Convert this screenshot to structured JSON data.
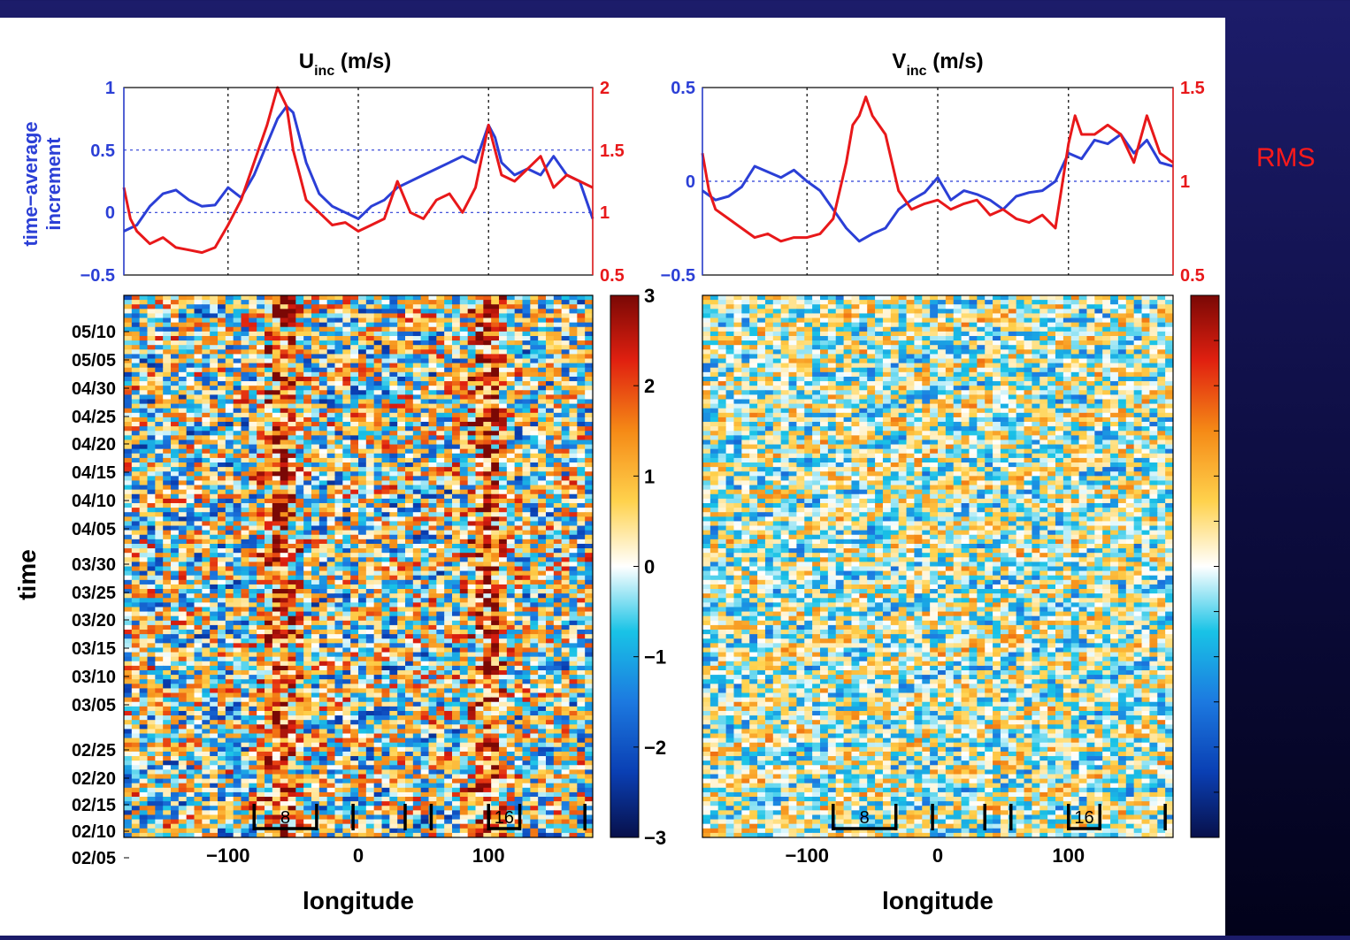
{
  "side_label": "RMS",
  "chart_data": [
    {
      "type": "line",
      "panel": "top-left",
      "title": "U",
      "title_subscript": "inc",
      "title_units": " (m/s)",
      "ylabel_lines": [
        "time−average",
        "increment"
      ],
      "xlim": [
        -180,
        180
      ],
      "ylim_left": [
        -0.5,
        1
      ],
      "ylim_right": [
        0.5,
        2
      ],
      "yticks_left": [
        "1",
        "0.5",
        "0",
        "−0.5"
      ],
      "yticks_right": [
        "2",
        "1.5",
        "1",
        "0.5"
      ],
      "grid": "dotted",
      "series": [
        {
          "axis": "left",
          "color": "#2b3fd6",
          "x": [
            -180,
            -170,
            -160,
            -150,
            -140,
            -130,
            -120,
            -110,
            -100,
            -90,
            -80,
            -70,
            -62,
            -55,
            -50,
            -45,
            -40,
            -30,
            -20,
            -10,
            0,
            10,
            20,
            30,
            40,
            50,
            60,
            70,
            80,
            90,
            100,
            105,
            110,
            120,
            130,
            140,
            150,
            160,
            170,
            180
          ],
          "y": [
            -0.15,
            -0.1,
            0.05,
            0.15,
            0.18,
            0.1,
            0.05,
            0.06,
            0.2,
            0.12,
            0.3,
            0.55,
            0.75,
            0.85,
            0.8,
            0.6,
            0.4,
            0.15,
            0.05,
            0.0,
            -0.05,
            0.05,
            0.1,
            0.2,
            0.25,
            0.3,
            0.35,
            0.4,
            0.45,
            0.4,
            0.7,
            0.6,
            0.4,
            0.3,
            0.35,
            0.3,
            0.45,
            0.3,
            0.25,
            -0.05
          ]
        },
        {
          "axis": "right",
          "color": "#e8181a",
          "x": [
            -180,
            -175,
            -170,
            -160,
            -150,
            -140,
            -130,
            -120,
            -110,
            -100,
            -90,
            -80,
            -70,
            -62,
            -55,
            -50,
            -45,
            -40,
            -30,
            -20,
            -10,
            0,
            10,
            20,
            30,
            40,
            50,
            60,
            70,
            80,
            90,
            100,
            105,
            110,
            120,
            130,
            140,
            150,
            160,
            170,
            180
          ],
          "y": [
            1.2,
            0.95,
            0.85,
            0.75,
            0.8,
            0.72,
            0.7,
            0.68,
            0.72,
            0.9,
            1.1,
            1.4,
            1.7,
            2.0,
            1.85,
            1.5,
            1.3,
            1.1,
            1.0,
            0.9,
            0.92,
            0.85,
            0.9,
            0.95,
            1.25,
            1.0,
            0.95,
            1.1,
            1.15,
            1.0,
            1.2,
            1.7,
            1.5,
            1.3,
            1.25,
            1.35,
            1.45,
            1.2,
            1.3,
            1.25,
            1.2
          ]
        }
      ]
    },
    {
      "type": "line",
      "panel": "top-right",
      "title": "V",
      "title_subscript": "inc",
      "title_units": " (m/s)",
      "xlim": [
        -180,
        180
      ],
      "ylim_left": [
        -0.5,
        0.5
      ],
      "ylim_right": [
        0.5,
        1.5
      ],
      "yticks_left": [
        "0.5",
        "0",
        "−0.5"
      ],
      "yticks_right": [
        "1.5",
        "1",
        "0.5"
      ],
      "grid": "dotted",
      "series": [
        {
          "axis": "left",
          "color": "#2b3fd6",
          "x": [
            -180,
            -170,
            -160,
            -150,
            -140,
            -130,
            -120,
            -110,
            -100,
            -90,
            -80,
            -70,
            -60,
            -50,
            -40,
            -30,
            -20,
            -10,
            0,
            10,
            20,
            30,
            40,
            50,
            60,
            70,
            80,
            90,
            100,
            110,
            120,
            130,
            140,
            150,
            160,
            170,
            180
          ],
          "y": [
            -0.05,
            -0.1,
            -0.08,
            -0.03,
            0.08,
            0.05,
            0.02,
            0.06,
            0.0,
            -0.05,
            -0.15,
            -0.25,
            -0.32,
            -0.28,
            -0.25,
            -0.15,
            -0.1,
            -0.06,
            0.02,
            -0.1,
            -0.05,
            -0.07,
            -0.1,
            -0.15,
            -0.08,
            -0.06,
            -0.05,
            0.0,
            0.15,
            0.12,
            0.22,
            0.2,
            0.25,
            0.15,
            0.22,
            0.1,
            0.08
          ]
        },
        {
          "axis": "right",
          "color": "#e8181a",
          "x": [
            -180,
            -175,
            -170,
            -160,
            -150,
            -140,
            -130,
            -120,
            -110,
            -100,
            -90,
            -80,
            -70,
            -65,
            -60,
            -55,
            -50,
            -45,
            -40,
            -35,
            -30,
            -20,
            -10,
            0,
            10,
            20,
            30,
            40,
            50,
            60,
            70,
            80,
            90,
            100,
            105,
            110,
            120,
            130,
            140,
            150,
            160,
            170,
            180
          ],
          "y": [
            1.15,
            0.95,
            0.85,
            0.8,
            0.75,
            0.7,
            0.72,
            0.68,
            0.7,
            0.7,
            0.72,
            0.8,
            1.1,
            1.3,
            1.35,
            1.45,
            1.35,
            1.3,
            1.25,
            1.1,
            0.95,
            0.85,
            0.88,
            0.9,
            0.85,
            0.88,
            0.9,
            0.82,
            0.85,
            0.8,
            0.78,
            0.82,
            0.75,
            1.2,
            1.35,
            1.25,
            1.25,
            1.3,
            1.25,
            1.1,
            1.35,
            1.15,
            1.1
          ]
        }
      ]
    },
    {
      "type": "heatmap",
      "panel": "bottom-left",
      "xlabel": "longitude",
      "ylabel": "time",
      "xlim": [
        -180,
        180
      ],
      "xticks": [
        -100,
        0,
        100
      ],
      "xtick_labels": [
        "−100",
        "0",
        "100"
      ],
      "ytick_labels": [
        "05/10",
        "05/05",
        "04/30",
        "04/25",
        "04/20",
        "04/15",
        "04/10",
        "04/05",
        "03/30",
        "03/25",
        "03/20",
        "03/15",
        "03/10",
        "03/05",
        "02/25",
        "02/20",
        "02/15",
        "02/10",
        "02/05"
      ],
      "colorbar_range": [
        -3,
        3
      ],
      "colorbar_ticks": [
        "3",
        "2",
        "1",
        "0",
        "−1",
        "−2",
        "−3"
      ],
      "colormap": [
        "#08104a",
        "#0a3fb3",
        "#1c79e0",
        "#19c3e6",
        "#ffffff",
        "#ffd24d",
        "#f58a16",
        "#e02010",
        "#7a0805"
      ],
      "positive_bands_longitude": [
        -60,
        100
      ],
      "positive_band_center_value": 1.8,
      "bracket_marker_labels": [
        "8",
        "16"
      ],
      "marker_longitudes": [
        -80,
        -32,
        -4,
        36,
        56,
        100,
        124,
        174
      ]
    },
    {
      "type": "heatmap",
      "panel": "bottom-right",
      "xlabel": "longitude",
      "xlim": [
        -180,
        180
      ],
      "xticks": [
        -100,
        0,
        100
      ],
      "xtick_labels": [
        "−100",
        "0",
        "100"
      ],
      "colorbar_range": [
        -3,
        3
      ],
      "colormap": [
        "#08104a",
        "#0a3fb3",
        "#1c79e0",
        "#19c3e6",
        "#ffffff",
        "#ffd24d",
        "#f58a16",
        "#e02010",
        "#7a0805"
      ],
      "bracket_marker_labels": [
        "8",
        "16"
      ],
      "marker_longitudes": [
        -80,
        -32,
        -4,
        36,
        56,
        100,
        124,
        174
      ]
    }
  ]
}
